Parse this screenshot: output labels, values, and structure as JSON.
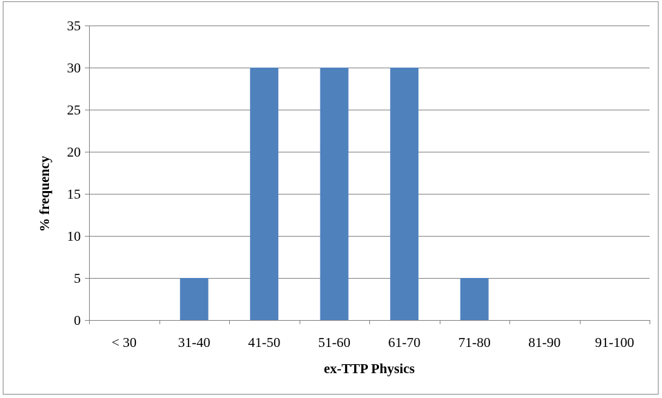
{
  "chart_data": {
    "type": "bar",
    "title": "",
    "xlabel": "ex-TTP Physics",
    "ylabel": "% frequency",
    "categories": [
      "< 30",
      "31-40",
      "41-50",
      "51-60",
      "61-70",
      "71-80",
      "81-90",
      "91-100"
    ],
    "values": [
      0,
      5,
      30,
      30,
      30,
      5,
      0,
      0
    ],
    "ylim": [
      0,
      35
    ],
    "yticks": [
      0,
      5,
      10,
      15,
      20,
      25,
      30,
      35
    ],
    "grid": true,
    "legend": "none",
    "bar_color": "#4f81bd"
  }
}
